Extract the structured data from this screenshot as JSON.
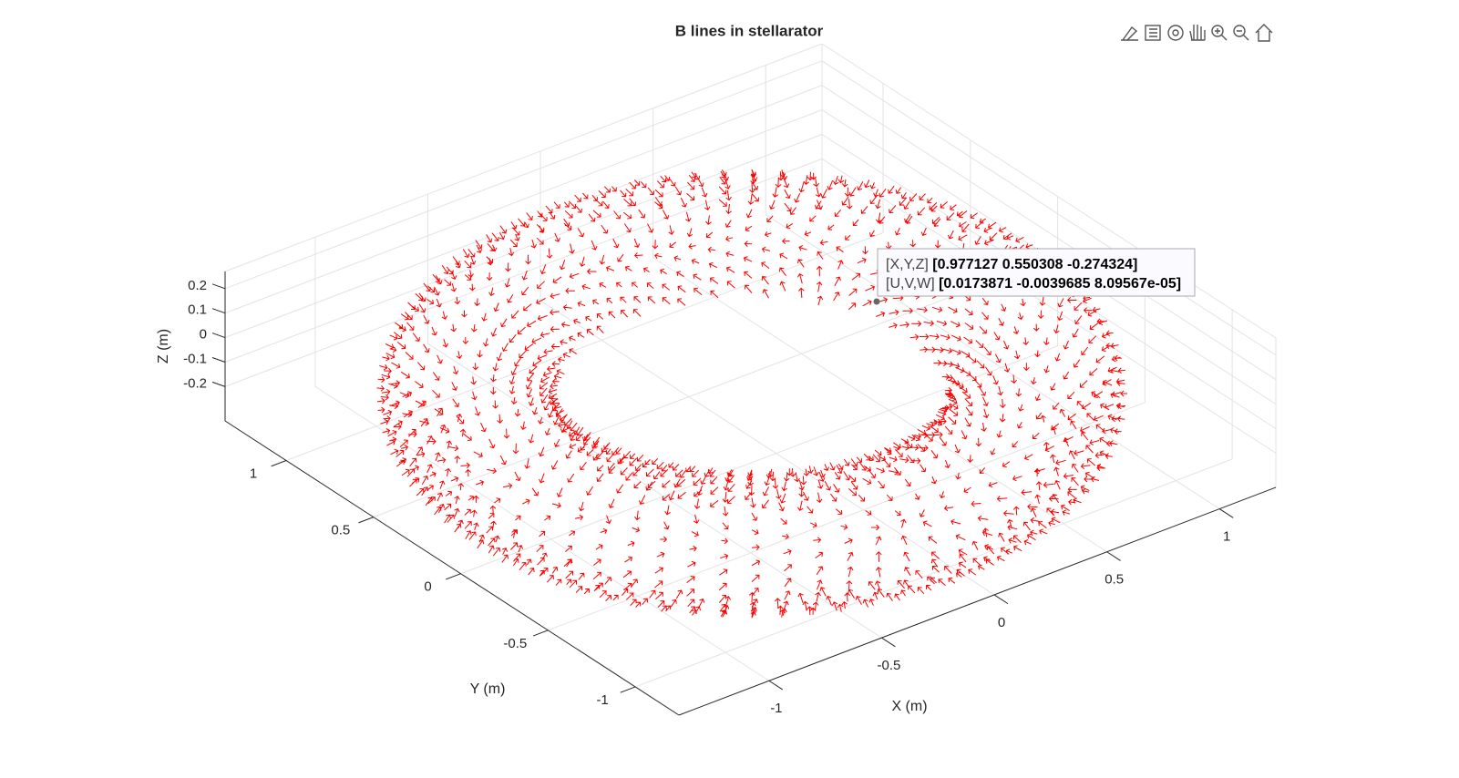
{
  "chart_data": {
    "type": "quiver3",
    "title": "B lines in stellarator",
    "xlabel": "X (m)",
    "ylabel": "Y (m)",
    "zlabel": "Z (m)",
    "xlim": [
      -1.4,
      1.25
    ],
    "ylim": [
      -1.25,
      1.35
    ],
    "zlim": [
      -0.34,
      0.27
    ],
    "xticks": [
      -1,
      -0.5,
      0,
      0.5,
      1
    ],
    "yticks": [
      -1,
      -0.5,
      0,
      0.5,
      1
    ],
    "zticks": [
      -0.2,
      -0.1,
      0,
      0.1,
      0.2
    ],
    "color": "#ff0000",
    "grid": true,
    "datatip": {
      "rows": [
        {
          "label": "[X,Y,Z]",
          "value": "[0.977127 0.550308 -0.274324]"
        },
        {
          "label": "[U,V,W]",
          "value": "[0.0173871 -0.0039685 8.09567e-05]"
        }
      ]
    }
  }
}
